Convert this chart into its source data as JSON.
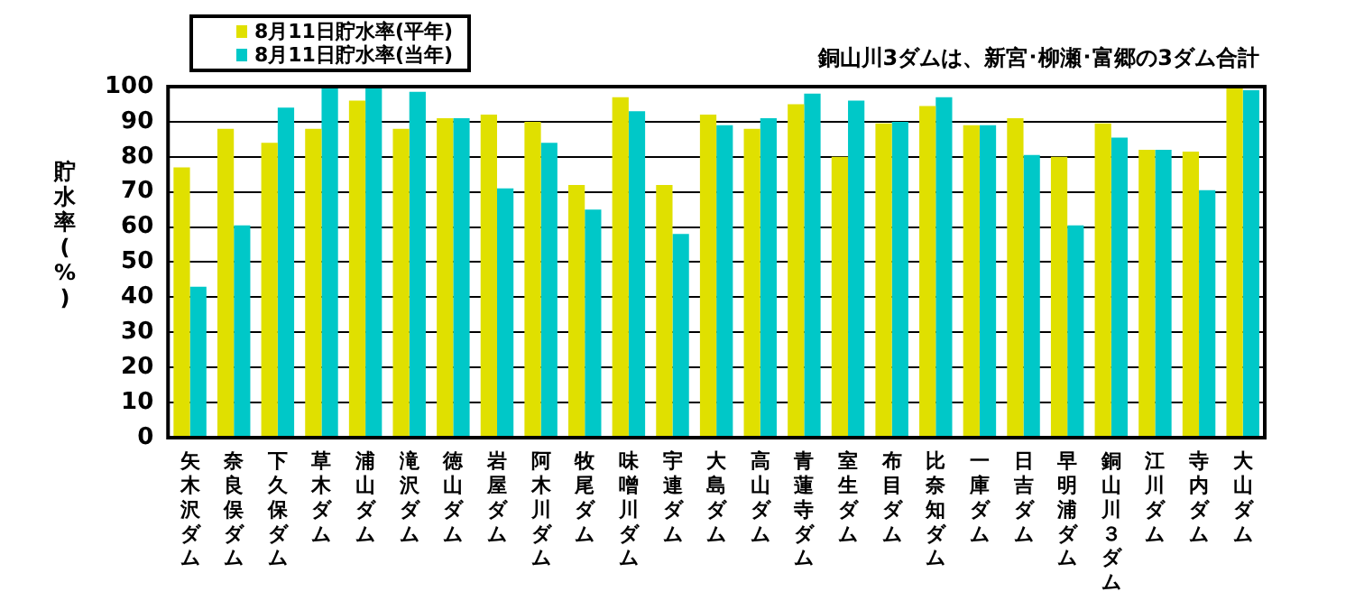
{
  "chart_data": {
    "type": "bar",
    "ylabel": "貯水率(%)",
    "annotations": [
      "銅山川3ダムは、新宮･柳瀬･富郷の3ダム合計"
    ],
    "categories": [
      "矢木沢ダム",
      "奈良俣ダム",
      "下久保ダム",
      "草木ダム",
      "浦山ダム",
      "滝沢ダム",
      "徳山ダム",
      "岩屋ダム",
      "阿木川ダム",
      "牧尾ダム",
      "味噌川ダム",
      "宇連ダム",
      "大島ダム",
      "高山ダム",
      "青蓮寺ダム",
      "室生ダム",
      "布目ダム",
      "比奈知ダム",
      "一庫ダム",
      "日吉ダム",
      "早明浦ダム",
      "銅山川３ダム",
      "江川ダム",
      "寺内ダム",
      "大山ダム"
    ],
    "series": [
      {
        "name": "8月11日貯水率(平年)",
        "color": "#e0e000",
        "values": [
          77,
          88,
          84,
          88,
          96,
          88,
          91,
          92,
          90,
          72,
          97,
          72,
          92,
          88,
          95,
          80,
          89.5,
          94.5,
          89,
          91,
          80,
          89.5,
          82,
          81.5,
          100
        ]
      },
      {
        "name": "8月11日貯水率(当年)",
        "color": "#00c8c8",
        "values": [
          43,
          60.5,
          94,
          100,
          100,
          98.5,
          91,
          71,
          84,
          65,
          93,
          58,
          89,
          91,
          98,
          96,
          90,
          97,
          89,
          80.5,
          60.5,
          85.5,
          82,
          70.5,
          99
        ]
      }
    ],
    "ylim": [
      0,
      100
    ],
    "yticks": [
      0,
      10,
      20,
      30,
      40,
      50,
      60,
      70,
      80,
      90,
      100
    ],
    "grid": "y",
    "legend": "top left"
  }
}
